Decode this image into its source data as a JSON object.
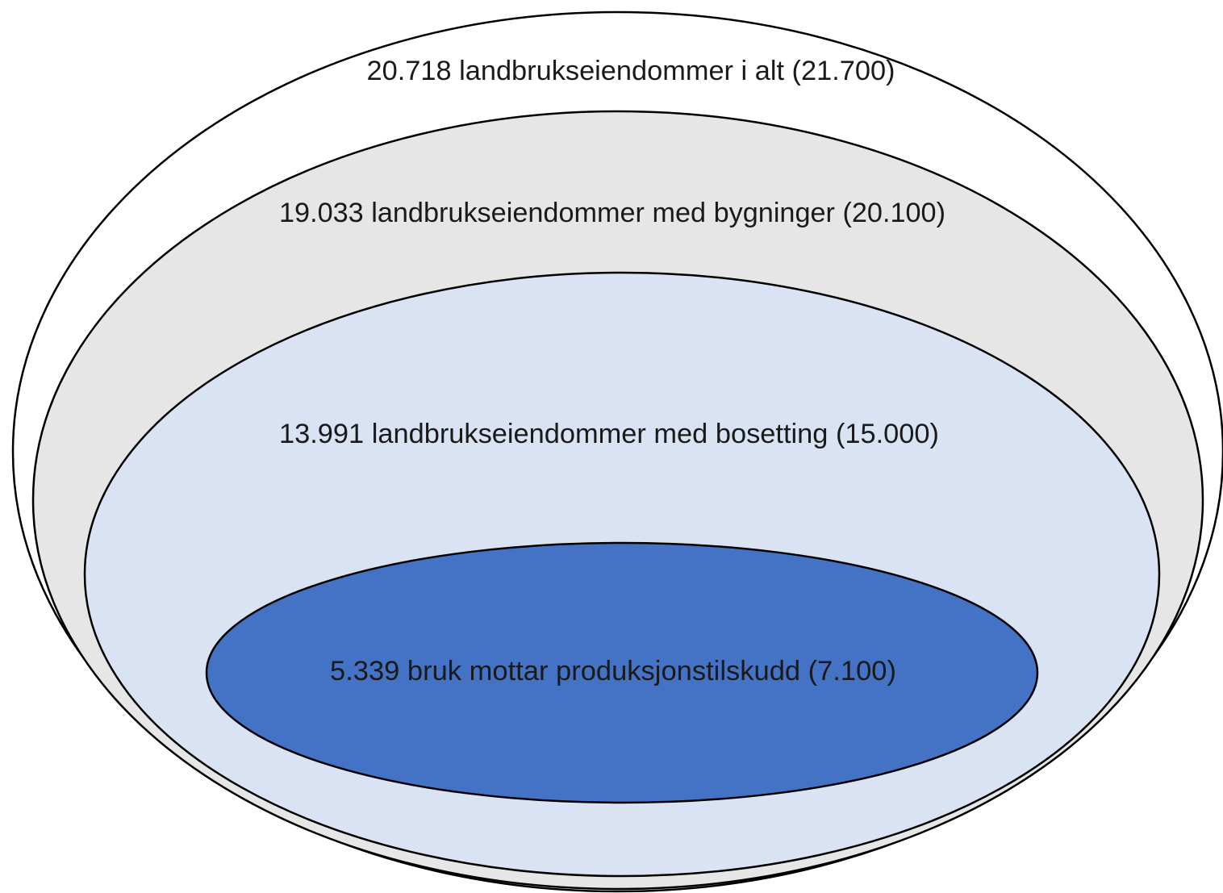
{
  "nodes": [
    {
      "label": "20.718 landbrukseiendommer i alt (21.700)"
    },
    {
      "label": "19.033 landbrukseiendommer med bygninger (20.100)"
    },
    {
      "label": "13.991 landbrukseiendommer med bosetting (15.000)"
    },
    {
      "label": "5.339 bruk mottar produksjonstilskudd (7.100)"
    }
  ]
}
